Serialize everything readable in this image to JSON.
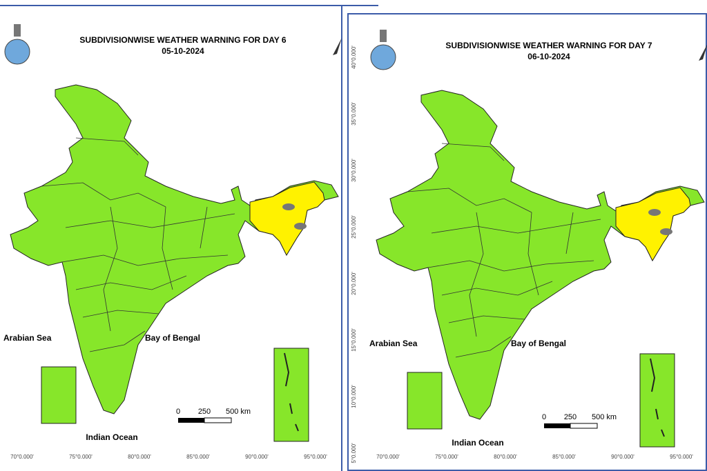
{
  "panels": [
    {
      "title": "SUBDIVISIONWISE WEATHER WARNING FOR DAY 6",
      "date": "05-10-2024",
      "sea_labels": [
        "Arabian Sea",
        "Bay of Bengal",
        "Indian Ocean"
      ],
      "scale_labels": [
        "0",
        "250",
        "500 km"
      ],
      "longitude_labels": [
        "70°0.000'",
        "75°0.000'",
        "80°0.000'",
        "85°0.000'",
        "90°0.000'",
        "95°0.000'"
      ]
    },
    {
      "title": "SUBDIVISIONWISE WEATHER WARNING FOR DAY 7",
      "date": "06-10-2024",
      "sea_labels": [
        "Arabian Sea",
        "Bay of Bengal",
        "Indian Ocean"
      ],
      "scale_labels": [
        "0",
        "250",
        "500 km"
      ],
      "longitude_labels": [
        "70°0.000'",
        "75°0.000'",
        "80°0.000'",
        "85°0.000'",
        "90°0.000'",
        "95°0.000'"
      ],
      "latitude_labels": [
        "40°0.000'",
        "35°0.000'",
        "30°0.000'",
        "25°0.000'",
        "20°0.000'",
        "15°0.000'",
        "10°0.000'",
        "5°0.000'"
      ]
    }
  ]
}
